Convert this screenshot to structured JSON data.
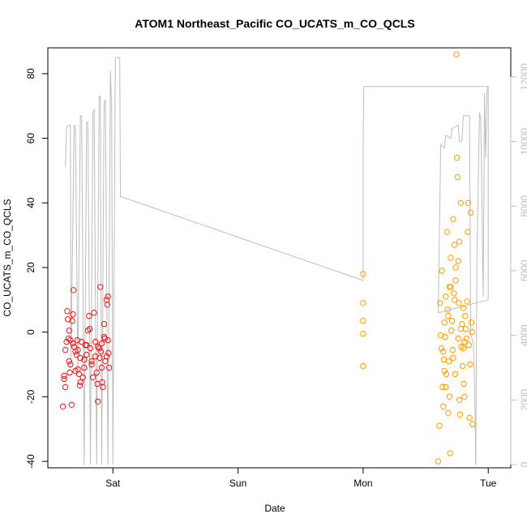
{
  "chart_data": {
    "type": "scatter",
    "title": "ATOM1 Northeast_Pacific CO_UCATS_m_CO_QCLS",
    "xlabel": "Date",
    "ylabel": "CO_UCATS_m_CO_QCLS",
    "x_ticks": [
      {
        "label": "Sat",
        "day": 1.0
      },
      {
        "label": "Sun",
        "day": 2.0
      },
      {
        "label": "Mon",
        "day": 3.0
      },
      {
        "label": "Tue",
        "day": 4.0
      }
    ],
    "xlim": [
      0.48,
      4.18
    ],
    "ylim": [
      -42,
      88
    ],
    "y_ticks": [
      -40,
      -20,
      0,
      20,
      40,
      60,
      80
    ],
    "y2lim": [
      -100,
      12900
    ],
    "y2_ticks": [
      0,
      2000,
      4000,
      6000,
      8000,
      10000,
      12000
    ],
    "grid": false,
    "colors": {
      "series1": "#e31a1c",
      "series2": "#ff9900",
      "altitude_line": "#bdbdbd",
      "axis": "#000000",
      "right_axis": "#bdbdbd"
    },
    "altitude_line": [
      [
        0.62,
        9200
      ],
      [
        0.63,
        10400
      ],
      [
        0.64,
        10500
      ],
      [
        0.66,
        10500
      ],
      [
        0.665,
        3200
      ],
      [
        0.69,
        10500
      ],
      [
        0.7,
        10500
      ],
      [
        0.72,
        2800
      ],
      [
        0.74,
        10800
      ],
      [
        0.75,
        10800
      ],
      [
        0.77,
        0
      ],
      [
        0.79,
        10600
      ],
      [
        0.8,
        10600
      ],
      [
        0.82,
        0
      ],
      [
        0.84,
        10900
      ],
      [
        0.85,
        11000
      ],
      [
        0.87,
        0
      ],
      [
        0.89,
        11400
      ],
      [
        0.9,
        11400
      ],
      [
        0.91,
        0
      ],
      [
        0.93,
        11200
      ],
      [
        0.94,
        11300
      ],
      [
        0.96,
        0
      ],
      [
        0.98,
        12200
      ],
      [
        0.99,
        11000
      ],
      [
        1.0,
        0
      ],
      [
        1.02,
        12600
      ],
      [
        1.055,
        12600
      ],
      [
        1.06,
        8300
      ],
      [
        3.0,
        5700
      ],
      [
        3.0,
        9900
      ],
      [
        3.005,
        11700
      ],
      [
        4.0,
        11700
      ],
      [
        4.0,
        5100
      ],
      [
        3.6,
        4700
      ],
      [
        3.62,
        9900
      ],
      [
        3.65,
        9800
      ],
      [
        3.66,
        10200
      ],
      [
        3.7,
        10100
      ],
      [
        3.71,
        10400
      ],
      [
        3.76,
        10500
      ],
      [
        3.77,
        10000
      ],
      [
        3.79,
        10000
      ],
      [
        3.8,
        10800
      ],
      [
        3.85,
        10800
      ],
      [
        3.86,
        4000
      ],
      [
        3.88,
        3800
      ],
      [
        3.89,
        2700
      ],
      [
        3.9,
        0
      ],
      [
        3.91,
        6500
      ],
      [
        3.93,
        10900
      ],
      [
        3.94,
        10700
      ],
      [
        3.96,
        5200
      ],
      [
        3.97,
        11500
      ],
      [
        3.98,
        9500
      ],
      [
        3.99,
        11600
      ],
      [
        4.0,
        11700
      ]
    ],
    "series": [
      {
        "values": [
          [
            0.6,
            -23.0
          ],
          [
            0.61,
            -13.5
          ],
          [
            0.62,
            -17.0
          ],
          [
            0.63,
            -3.0
          ],
          [
            0.635,
            6.5
          ],
          [
            0.64,
            4.0
          ],
          [
            0.645,
            -2.0
          ],
          [
            0.65,
            0.5
          ],
          [
            0.655,
            -12.5
          ],
          [
            0.66,
            -10.0
          ],
          [
            0.67,
            -22.5
          ],
          [
            0.675,
            3.5
          ],
          [
            0.68,
            5.5
          ],
          [
            0.685,
            13.0
          ],
          [
            0.69,
            -4.5
          ],
          [
            0.7,
            -6.0
          ],
          [
            0.71,
            -7.0
          ],
          [
            0.715,
            -2.5
          ],
          [
            0.72,
            -5.5
          ],
          [
            0.73,
            -13.0
          ],
          [
            0.735,
            -16.5
          ],
          [
            0.74,
            -8.0
          ],
          [
            0.75,
            -3.0
          ],
          [
            0.76,
            -14.0
          ],
          [
            0.77,
            -11.0
          ],
          [
            0.78,
            -4.0
          ],
          [
            0.79,
            -7.0
          ],
          [
            0.8,
            0.5
          ],
          [
            0.81,
            5.0
          ],
          [
            0.815,
            1.0
          ],
          [
            0.82,
            -5.0
          ],
          [
            0.83,
            -9.0
          ],
          [
            0.84,
            -14.0
          ],
          [
            0.85,
            6.0
          ],
          [
            0.86,
            -7.5
          ],
          [
            0.87,
            -12.5
          ],
          [
            0.875,
            -16.0
          ],
          [
            0.88,
            -21.5
          ],
          [
            0.89,
            -5.0
          ],
          [
            0.895,
            -8.0
          ],
          [
            0.9,
            14.0
          ],
          [
            0.905,
            -6.0
          ],
          [
            0.91,
            -11.0
          ],
          [
            0.915,
            -15.5
          ],
          [
            0.92,
            -17.0
          ],
          [
            0.93,
            2.5
          ],
          [
            0.935,
            -2.0
          ],
          [
            0.94,
            -9.0
          ],
          [
            0.95,
            10.0
          ],
          [
            0.955,
            8.5
          ],
          [
            0.96,
            11.0
          ],
          [
            0.965,
            -6.5
          ],
          [
            0.97,
            -11.0
          ],
          [
            0.62,
            -5.5
          ],
          [
            0.65,
            -9.0
          ],
          [
            0.68,
            -3.5
          ],
          [
            0.72,
            -11.5
          ],
          [
            0.77,
            -8.5
          ],
          [
            0.83,
            -10.0
          ],
          [
            0.88,
            -4.5
          ],
          [
            0.93,
            -1.5
          ],
          [
            0.96,
            -2.5
          ],
          [
            0.61,
            -14.5
          ],
          [
            0.66,
            -2.5
          ],
          [
            0.7,
            -12.0
          ],
          [
            0.74,
            -15.5
          ],
          [
            0.79,
            -4.0
          ],
          [
            0.86,
            -3.0
          ],
          [
            0.91,
            -3.5
          ],
          [
            0.95,
            -7.5
          ]
        ]
      },
      {
        "values": [
          [
            3.0,
            18.0
          ],
          [
            3.0,
            9.0
          ],
          [
            3.0,
            3.5
          ],
          [
            3.0,
            -10.5
          ],
          [
            3.0,
            -0.5
          ],
          [
            3.6,
            -40.0
          ],
          [
            3.61,
            -29.0
          ],
          [
            3.615,
            9.0
          ],
          [
            3.62,
            -1.0
          ],
          [
            3.625,
            -5.0
          ],
          [
            3.63,
            19.0
          ],
          [
            3.635,
            -17.0
          ],
          [
            3.64,
            -23.0
          ],
          [
            3.645,
            -8.5
          ],
          [
            3.65,
            3.0
          ],
          [
            3.655,
            -1.5
          ],
          [
            3.66,
            11.0
          ],
          [
            3.665,
            -13.0
          ],
          [
            3.67,
            31.0
          ],
          [
            3.675,
            7.0
          ],
          [
            3.68,
            -25.0
          ],
          [
            3.685,
            -9.0
          ],
          [
            3.69,
            14.0
          ],
          [
            3.695,
            -37.5
          ],
          [
            3.7,
            23.0
          ],
          [
            3.705,
            0.5
          ],
          [
            3.71,
            3.5
          ],
          [
            3.715,
            -5.5
          ],
          [
            3.72,
            35.0
          ],
          [
            3.725,
            12.0
          ],
          [
            3.73,
            27.0
          ],
          [
            3.735,
            -13.0
          ],
          [
            3.74,
            20.0
          ],
          [
            3.745,
            86.0
          ],
          [
            3.75,
            54.0
          ],
          [
            3.755,
            48.0
          ],
          [
            3.76,
            22.0
          ],
          [
            3.765,
            9.0
          ],
          [
            3.77,
            -21.0
          ],
          [
            3.775,
            -25.5
          ],
          [
            3.78,
            40.0
          ],
          [
            3.785,
            -4.5
          ],
          [
            3.79,
            2.5
          ],
          [
            3.795,
            -10.5
          ],
          [
            3.8,
            7.5
          ],
          [
            3.805,
            -16.0
          ],
          [
            3.81,
            -20.0
          ],
          [
            3.815,
            5.0
          ],
          [
            3.82,
            1.0
          ],
          [
            3.825,
            -2.0
          ],
          [
            3.83,
            9.5
          ],
          [
            3.835,
            31.0
          ],
          [
            3.84,
            40.0
          ],
          [
            3.845,
            -4.0
          ],
          [
            3.85,
            -26.5
          ],
          [
            3.855,
            -10.0
          ],
          [
            3.86,
            37.0
          ],
          [
            3.865,
            3.0
          ],
          [
            3.87,
            0.0
          ],
          [
            3.875,
            -28.5
          ],
          [
            3.64,
            -6.0
          ],
          [
            3.66,
            -17.0
          ],
          [
            3.68,
            5.0
          ],
          [
            3.7,
            14.0
          ],
          [
            3.72,
            -8.0
          ],
          [
            3.74,
            16.0
          ],
          [
            3.76,
            -2.0
          ],
          [
            3.78,
            1.0
          ],
          [
            3.8,
            -5.0
          ],
          [
            3.65,
            -12.0
          ],
          [
            3.69,
            -20.0
          ],
          [
            3.73,
            10.0
          ],
          [
            3.77,
            28.0
          ],
          [
            3.81,
            -3.0
          ]
        ]
      }
    ]
  }
}
